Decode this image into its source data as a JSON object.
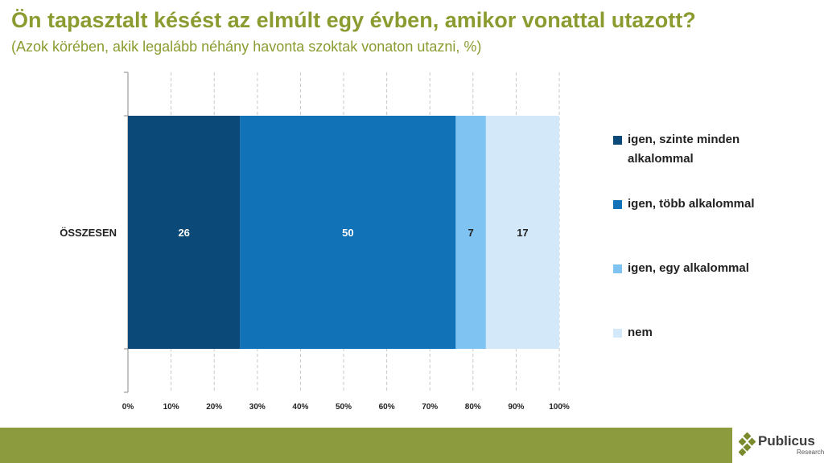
{
  "header": {
    "title": "Ön tapasztalt késést az elmúlt egy évben, amikor vonattal utazott?",
    "subtitle": "(Azok körében, akik legalább néhány havonta szoktak vonaton utazni, %)"
  },
  "chart_data": {
    "type": "bar",
    "orientation": "horizontal",
    "stacked": true,
    "categories": [
      "ÖSSZESEN"
    ],
    "series": [
      {
        "name": "igen, szinte minden alkalommal",
        "values": [
          26
        ],
        "color": "#0b4a78"
      },
      {
        "name": "igen, több alkalommal",
        "values": [
          50
        ],
        "color": "#1272b8"
      },
      {
        "name": "igen, egy alkalommal",
        "values": [
          7
        ],
        "color": "#7ec3f2"
      },
      {
        "name": "nem",
        "values": [
          17
        ],
        "color": "#d3e9fa"
      }
    ],
    "label_colors": [
      "#ffffff",
      "#ffffff",
      "#222222",
      "#222222"
    ],
    "xlim": [
      0,
      100
    ],
    "xticks": [
      0,
      10,
      20,
      30,
      40,
      50,
      60,
      70,
      80,
      90,
      100
    ],
    "tick_labels": [
      "0%",
      "10%",
      "20%",
      "30%",
      "40%",
      "50%",
      "60%",
      "70%",
      "80%",
      "90%",
      "100%"
    ],
    "grid": true,
    "legend_position": "right"
  },
  "legend": {
    "items": [
      {
        "label": "igen, szinte minden alkalommal",
        "color": "#0b4a78"
      },
      {
        "label": "igen, több alkalommal",
        "color": "#1272b8"
      },
      {
        "label": "igen, egy alkalommal",
        "color": "#7ec3f2"
      },
      {
        "label": "nem",
        "color": "#d3e9fa"
      }
    ]
  },
  "footer": {
    "brand": "Publicus",
    "brand_sub": "Research",
    "bar_color": "#8c9b3e",
    "logo_color": "#7a8b2e"
  }
}
